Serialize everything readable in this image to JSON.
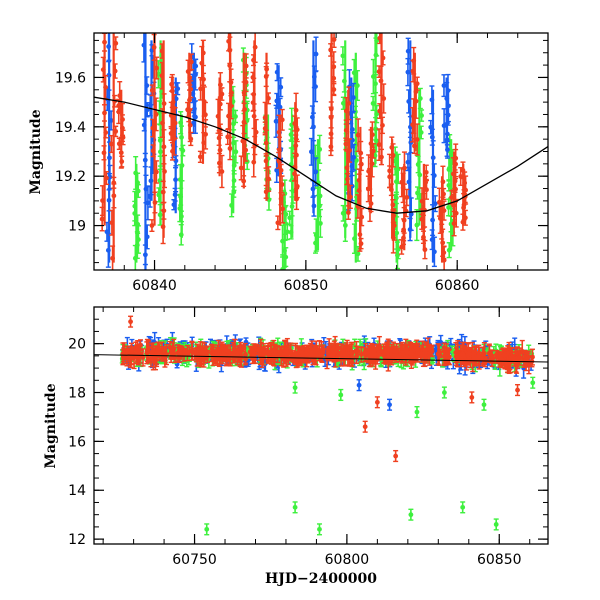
{
  "colors": {
    "green": "#3ef03e",
    "blue": "#1a5ef0",
    "red": "#f04020",
    "model": "#000000",
    "frame": "#000000"
  },
  "chart_data": [
    {
      "type": "scatter",
      "panel": "top",
      "title": "",
      "xlabel": "",
      "ylabel": "Magnitude",
      "xlim": [
        60836,
        60866
      ],
      "ylim": [
        19.78,
        18.82
      ],
      "y_inverted": true,
      "x_ticks": [
        60840,
        60850,
        60860
      ],
      "y_ticks": [
        19,
        19.2,
        19.4,
        19.6
      ],
      "x_tick_labels": [
        "60840",
        "60850",
        "60860"
      ],
      "y_tick_labels": [
        "19",
        "19.2",
        "19.4",
        "19.6"
      ],
      "series": [
        {
          "color_key": "red",
          "clusters": [
            {
              "x": 60836.7,
              "y_min": 19.0,
              "y_max": 19.8
            },
            {
              "x": 60837.3,
              "y_min": 18.85,
              "y_max": 19.8
            },
            {
              "x": 60837.8,
              "y_min": 19.25,
              "y_max": 19.55
            },
            {
              "x": 60840.0,
              "y_min": 19.0,
              "y_max": 19.8
            },
            {
              "x": 60840.6,
              "y_min": 18.95,
              "y_max": 19.75
            },
            {
              "x": 60841.2,
              "y_min": 19.3,
              "y_max": 19.6
            },
            {
              "x": 60842.3,
              "y_min": 19.35,
              "y_max": 19.7
            },
            {
              "x": 60843.2,
              "y_min": 19.25,
              "y_max": 19.75
            },
            {
              "x": 60844.3,
              "y_min": 19.2,
              "y_max": 19.6
            },
            {
              "x": 60845.0,
              "y_min": 19.3,
              "y_max": 19.8
            },
            {
              "x": 60845.9,
              "y_min": 19.15,
              "y_max": 19.7
            },
            {
              "x": 60846.6,
              "y_min": 19.25,
              "y_max": 19.75
            },
            {
              "x": 60847.4,
              "y_min": 19.1,
              "y_max": 19.7
            },
            {
              "x": 60848.3,
              "y_min": 19.0,
              "y_max": 19.45
            },
            {
              "x": 60849.3,
              "y_min": 19.1,
              "y_max": 19.5
            },
            {
              "x": 60851.7,
              "y_min": 19.3,
              "y_max": 19.8
            },
            {
              "x": 60852.8,
              "y_min": 19.05,
              "y_max": 19.55
            },
            {
              "x": 60853.6,
              "y_min": 18.9,
              "y_max": 19.4
            },
            {
              "x": 60854.3,
              "y_min": 19.05,
              "y_max": 19.4
            },
            {
              "x": 60855.0,
              "y_min": 19.25,
              "y_max": 19.8
            },
            {
              "x": 60855.7,
              "y_min": 18.95,
              "y_max": 19.35
            },
            {
              "x": 60856.5,
              "y_min": 18.9,
              "y_max": 19.25
            },
            {
              "x": 60857.2,
              "y_min": 19.3,
              "y_max": 19.7
            },
            {
              "x": 60857.8,
              "y_min": 18.9,
              "y_max": 19.25
            },
            {
              "x": 60859.0,
              "y_min": 18.85,
              "y_max": 19.2
            },
            {
              "x": 60859.8,
              "y_min": 19.0,
              "y_max": 19.3
            },
            {
              "x": 60860.4,
              "y_min": 19.0,
              "y_max": 19.25
            }
          ]
        },
        {
          "color_key": "blue",
          "clusters": [
            {
              "x": 60837.0,
              "y_min": 18.85,
              "y_max": 19.8
            },
            {
              "x": 60839.4,
              "y_min": 18.82,
              "y_max": 19.78
            },
            {
              "x": 60839.8,
              "y_min": 19.1,
              "y_max": 19.75
            },
            {
              "x": 60841.4,
              "y_min": 19.05,
              "y_max": 19.6
            },
            {
              "x": 60842.6,
              "y_min": 19.4,
              "y_max": 19.7
            },
            {
              "x": 60848.2,
              "y_min": 19.2,
              "y_max": 19.65
            },
            {
              "x": 60850.5,
              "y_min": 19.05,
              "y_max": 19.75
            },
            {
              "x": 60853.0,
              "y_min": 19.1,
              "y_max": 19.6
            },
            {
              "x": 60856.9,
              "y_min": 18.95,
              "y_max": 19.75
            },
            {
              "x": 60858.4,
              "y_min": 18.85,
              "y_max": 19.55
            },
            {
              "x": 60859.3,
              "y_min": 19.3,
              "y_max": 19.6
            }
          ]
        },
        {
          "color_key": "green",
          "clusters": [
            {
              "x": 60838.8,
              "y_min": 18.85,
              "y_max": 19.25
            },
            {
              "x": 60840.4,
              "y_min": 19.0,
              "y_max": 19.75
            },
            {
              "x": 60841.8,
              "y_min": 18.95,
              "y_max": 19.45
            },
            {
              "x": 60845.2,
              "y_min": 19.05,
              "y_max": 19.55
            },
            {
              "x": 60846.0,
              "y_min": 19.25,
              "y_max": 19.7
            },
            {
              "x": 60847.5,
              "y_min": 19.1,
              "y_max": 19.45
            },
            {
              "x": 60848.6,
              "y_min": 18.82,
              "y_max": 19.15
            },
            {
              "x": 60849.1,
              "y_min": 18.95,
              "y_max": 19.45
            },
            {
              "x": 60850.8,
              "y_min": 18.9,
              "y_max": 19.35
            },
            {
              "x": 60852.6,
              "y_min": 18.95,
              "y_max": 19.75
            },
            {
              "x": 60853.3,
              "y_min": 18.85,
              "y_max": 19.7
            },
            {
              "x": 60854.6,
              "y_min": 19.25,
              "y_max": 19.78
            },
            {
              "x": 60856.0,
              "y_min": 18.85,
              "y_max": 19.3
            },
            {
              "x": 60857.5,
              "y_min": 19.0,
              "y_max": 19.55
            },
            {
              "x": 60859.6,
              "y_min": 18.9,
              "y_max": 19.35
            }
          ]
        }
      ],
      "model_curve": {
        "x": [
          60836,
          60838,
          60840,
          60842,
          60844,
          60846,
          60848,
          60850,
          60852,
          60854,
          60856,
          60858,
          60860,
          60862,
          60864,
          60866
        ],
        "y": [
          19.52,
          19.5,
          19.47,
          19.44,
          19.4,
          19.35,
          19.28,
          19.2,
          19.12,
          19.07,
          19.05,
          19.06,
          19.1,
          19.17,
          19.24,
          19.32
        ]
      }
    },
    {
      "type": "scatter",
      "panel": "bottom",
      "title": "",
      "xlabel": "HJD−2400000",
      "ylabel": "Magnitude",
      "xlim": [
        60717,
        60866
      ],
      "ylim": [
        21.5,
        11.8
      ],
      "y_inverted": true,
      "x_ticks": [
        60750,
        60800,
        60850
      ],
      "y_ticks": [
        12,
        14,
        16,
        18,
        20
      ],
      "x_tick_labels": [
        "60750",
        "60800",
        "60850"
      ],
      "y_tick_labels": [
        "12",
        "14",
        "16",
        "18",
        "20"
      ],
      "baseline": {
        "x_range": [
          60726,
          60861
        ],
        "y_center": 19.6
      },
      "outliers": [
        {
          "series": "green",
          "x": 60754,
          "y": 12.4
        },
        {
          "series": "green",
          "x": 60783,
          "y": 13.3
        },
        {
          "series": "green",
          "x": 60791,
          "y": 12.4
        },
        {
          "series": "green",
          "x": 60821,
          "y": 13.0
        },
        {
          "series": "green",
          "x": 60838,
          "y": 13.3
        },
        {
          "series": "green",
          "x": 60849,
          "y": 12.6
        },
        {
          "series": "green",
          "x": 60823,
          "y": 17.2
        },
        {
          "series": "green",
          "x": 60845,
          "y": 17.5
        },
        {
          "series": "green",
          "x": 60798,
          "y": 17.9
        },
        {
          "series": "green",
          "x": 60832,
          "y": 18.0
        },
        {
          "series": "green",
          "x": 60783,
          "y": 18.2
        },
        {
          "series": "green",
          "x": 60861,
          "y": 18.4
        },
        {
          "series": "red",
          "x": 60806,
          "y": 16.6
        },
        {
          "series": "red",
          "x": 60816,
          "y": 15.4
        },
        {
          "series": "red",
          "x": 60810,
          "y": 17.6
        },
        {
          "series": "red",
          "x": 60841,
          "y": 17.8
        },
        {
          "series": "red",
          "x": 60856,
          "y": 18.1
        },
        {
          "series": "red",
          "x": 60729,
          "y": 20.9
        },
        {
          "series": "blue",
          "x": 60814,
          "y": 17.5
        },
        {
          "series": "blue",
          "x": 60804,
          "y": 18.3
        }
      ]
    }
  ]
}
